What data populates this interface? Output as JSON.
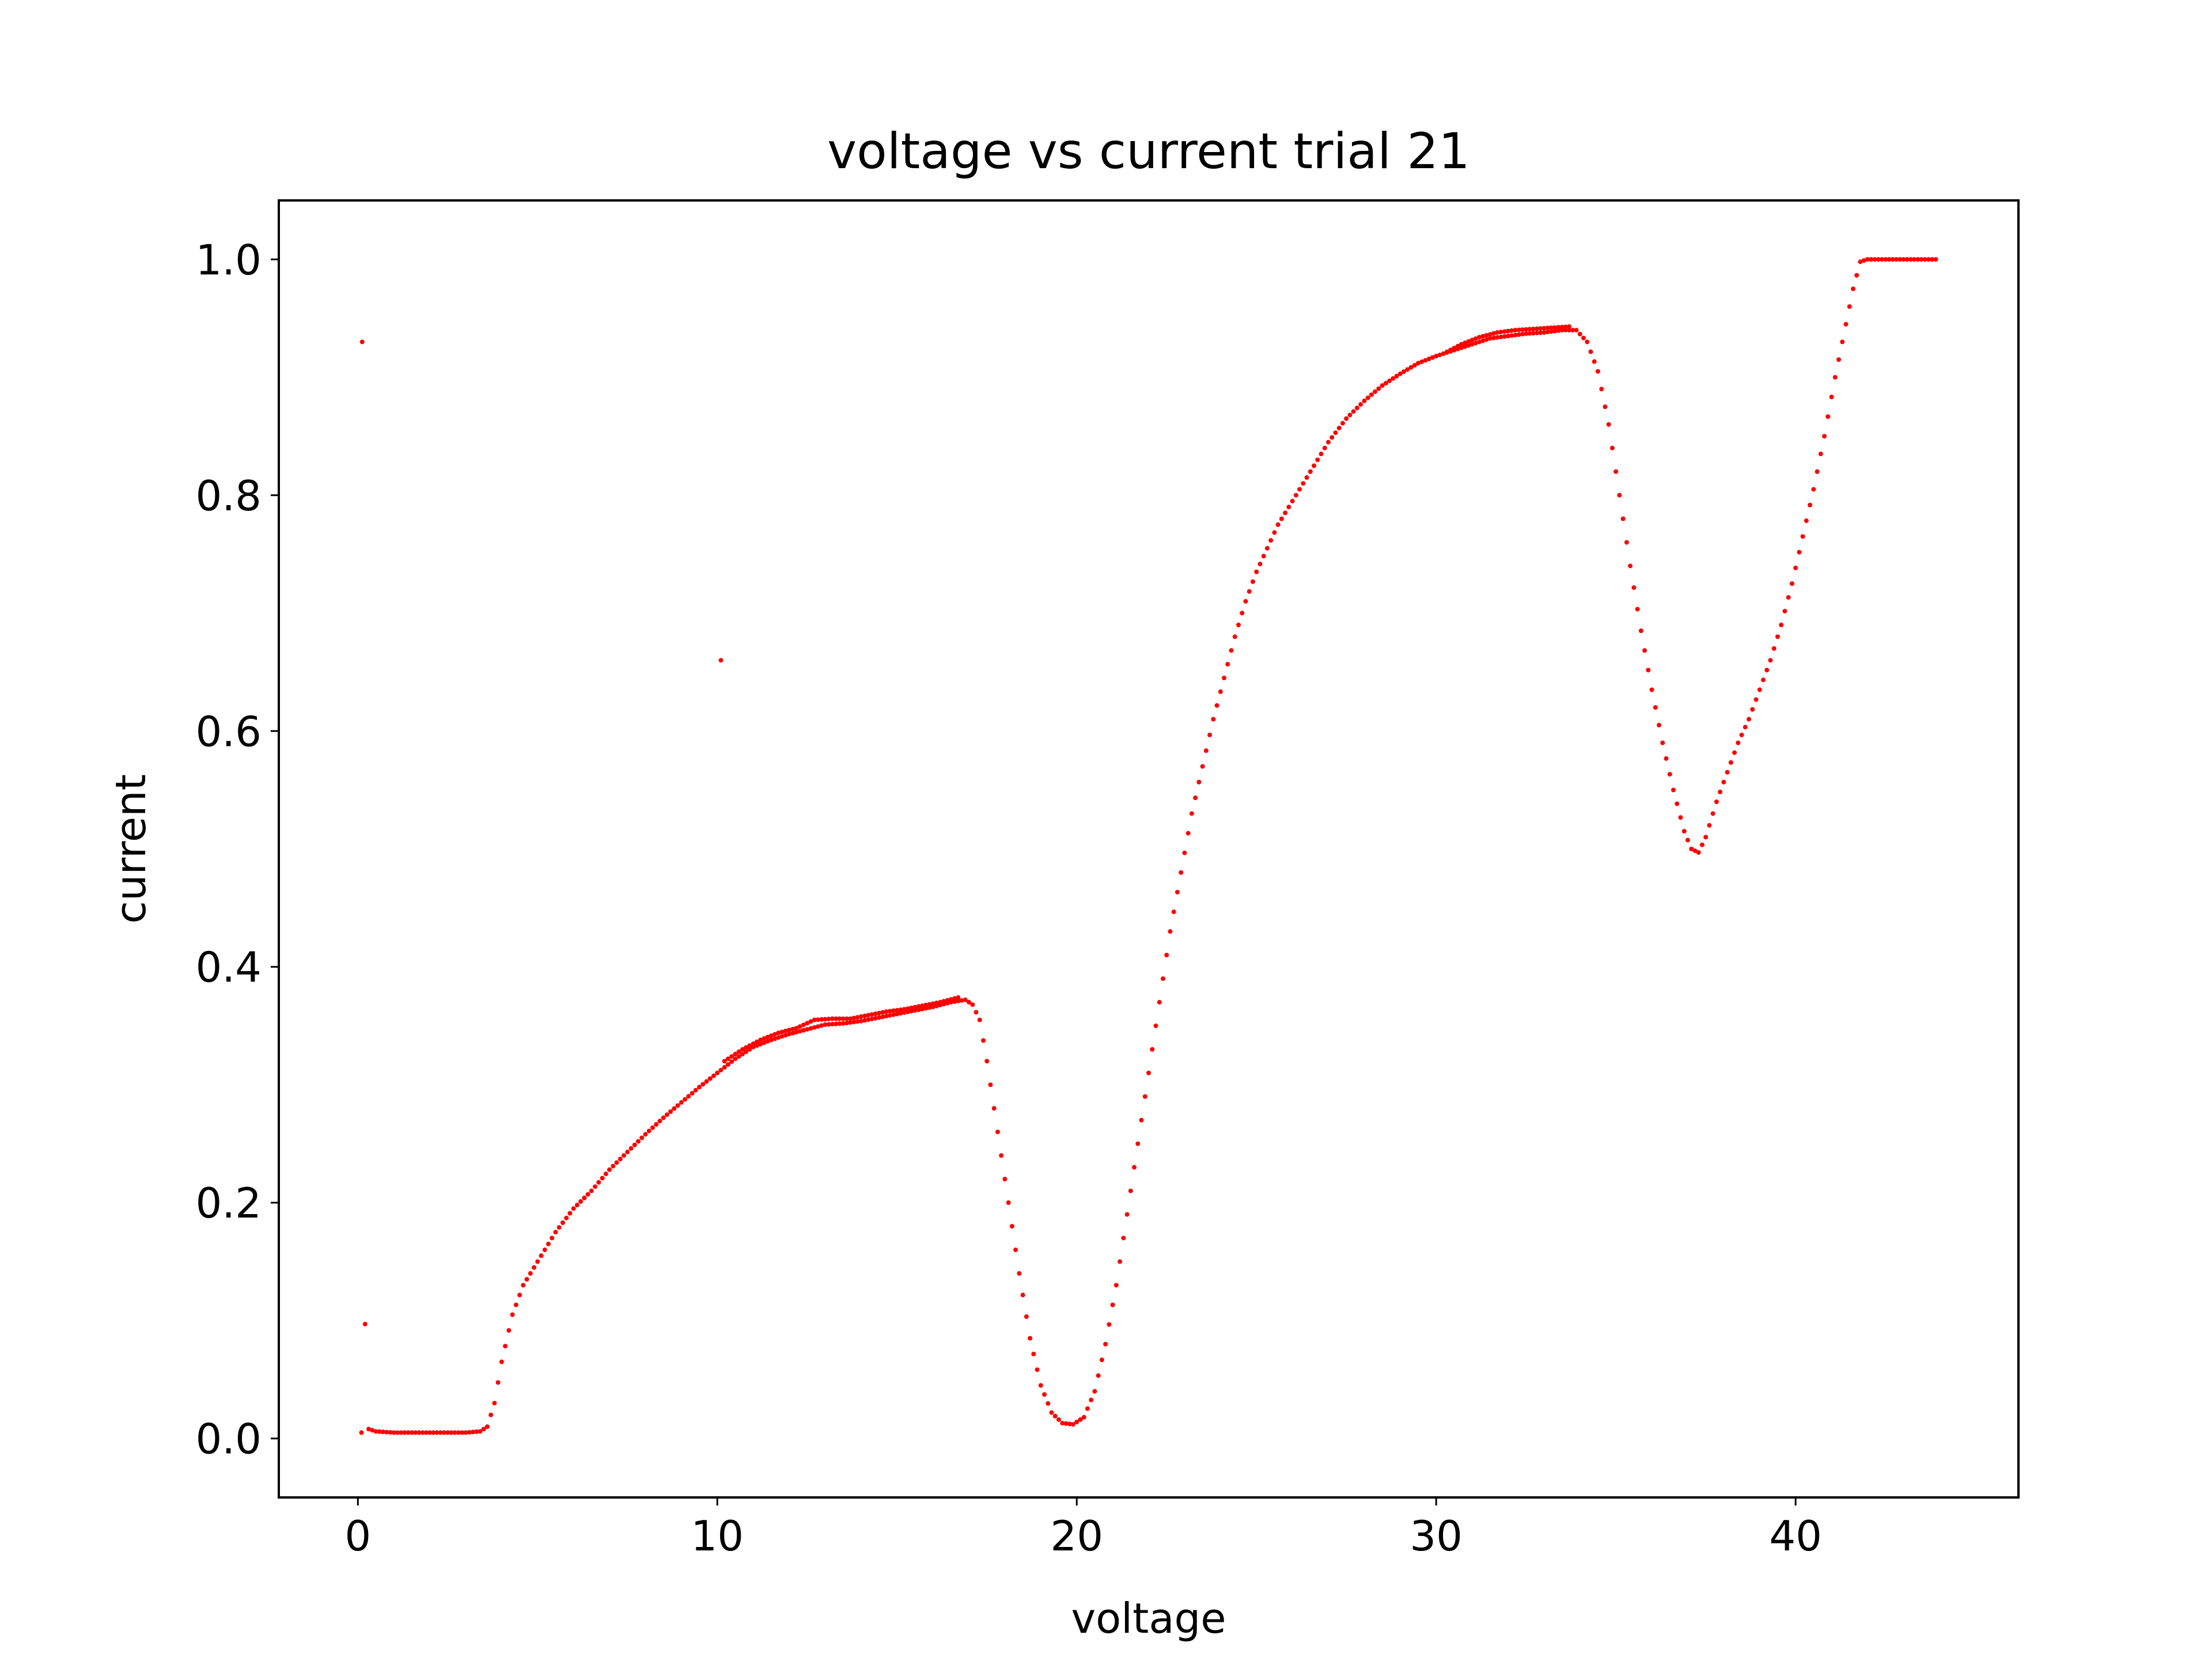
{
  "chart_data": {
    "type": "scatter",
    "title": "voltage vs current trial 21",
    "xlabel": "voltage",
    "ylabel": "current",
    "xlim": [
      -2.2,
      46.2
    ],
    "ylim": [
      -0.05,
      1.05
    ],
    "xticks": [
      0,
      10,
      20,
      30,
      40
    ],
    "xtick_labels": [
      "0",
      "10",
      "20",
      "30",
      "40"
    ],
    "yticks": [
      0.0,
      0.2,
      0.4,
      0.6,
      0.8,
      1.0
    ],
    "ytick_labels": [
      "0.0",
      "0.2",
      "0.4",
      "0.6",
      "0.8",
      "1.0"
    ],
    "grid": false,
    "legend": "none",
    "marker_color": "#ff0000",
    "series": [
      {
        "marker": "point",
        "outliers": [
          [
            0.1,
            0.005
          ],
          [
            0.12,
            0.93
          ],
          [
            0.2,
            0.097
          ],
          [
            10.1,
            0.66
          ]
        ],
        "points_main": [
          [
            0.3,
            0.008
          ],
          [
            0.5,
            0.006
          ],
          [
            1.0,
            0.005
          ],
          [
            1.5,
            0.005
          ],
          [
            2.0,
            0.005
          ],
          [
            2.5,
            0.005
          ],
          [
            3.0,
            0.005
          ],
          [
            3.4,
            0.006
          ],
          [
            3.6,
            0.01
          ],
          [
            3.8,
            0.03
          ],
          [
            4.0,
            0.065
          ],
          [
            4.3,
            0.105
          ],
          [
            4.6,
            0.13
          ],
          [
            5.0,
            0.15
          ],
          [
            5.5,
            0.175
          ],
          [
            6.0,
            0.195
          ],
          [
            6.5,
            0.21
          ],
          [
            7.0,
            0.228
          ],
          [
            7.5,
            0.243
          ],
          [
            8.0,
            0.258
          ],
          [
            8.5,
            0.272
          ],
          [
            9.0,
            0.285
          ],
          [
            9.5,
            0.298
          ],
          [
            10.0,
            0.31
          ],
          [
            10.5,
            0.322
          ],
          [
            11.0,
            0.332
          ],
          [
            11.5,
            0.338
          ],
          [
            12.0,
            0.343
          ],
          [
            12.5,
            0.347
          ],
          [
            13.0,
            0.351
          ],
          [
            13.5,
            0.352
          ],
          [
            14.0,
            0.354
          ],
          [
            14.5,
            0.357
          ],
          [
            15.0,
            0.36
          ],
          [
            15.5,
            0.363
          ],
          [
            16.0,
            0.366
          ],
          [
            16.5,
            0.37
          ],
          [
            16.9,
            0.372
          ],
          [
            17.1,
            0.368
          ],
          [
            17.3,
            0.355
          ],
          [
            17.5,
            0.32
          ],
          [
            17.8,
            0.26
          ],
          [
            18.1,
            0.2
          ],
          [
            18.4,
            0.14
          ],
          [
            18.7,
            0.085
          ],
          [
            19.0,
            0.045
          ],
          [
            19.3,
            0.022
          ],
          [
            19.6,
            0.013
          ],
          [
            19.9,
            0.012
          ],
          [
            20.2,
            0.018
          ],
          [
            20.5,
            0.04
          ],
          [
            20.8,
            0.08
          ],
          [
            21.1,
            0.13
          ],
          [
            21.4,
            0.19
          ],
          [
            21.7,
            0.25
          ],
          [
            22.0,
            0.31
          ],
          [
            22.3,
            0.37
          ],
          [
            22.6,
            0.43
          ],
          [
            22.9,
            0.48
          ],
          [
            23.2,
            0.53
          ],
          [
            23.5,
            0.57
          ],
          [
            23.8,
            0.61
          ],
          [
            24.1,
            0.645
          ],
          [
            24.4,
            0.68
          ],
          [
            24.7,
            0.71
          ],
          [
            25.0,
            0.735
          ],
          [
            25.3,
            0.755
          ],
          [
            25.6,
            0.775
          ],
          [
            26.0,
            0.795
          ],
          [
            26.5,
            0.82
          ],
          [
            27.0,
            0.845
          ],
          [
            27.5,
            0.865
          ],
          [
            28.0,
            0.88
          ],
          [
            28.5,
            0.893
          ],
          [
            29.0,
            0.903
          ],
          [
            29.5,
            0.912
          ],
          [
            30.0,
            0.918
          ],
          [
            30.5,
            0.923
          ],
          [
            31.0,
            0.928
          ],
          [
            31.5,
            0.933
          ],
          [
            32.0,
            0.935
          ],
          [
            32.5,
            0.937
          ],
          [
            33.0,
            0.938
          ],
          [
            33.5,
            0.94
          ],
          [
            33.9,
            0.94
          ],
          [
            34.2,
            0.93
          ],
          [
            34.5,
            0.905
          ],
          [
            34.8,
            0.86
          ],
          [
            35.1,
            0.8
          ],
          [
            35.4,
            0.74
          ],
          [
            35.7,
            0.685
          ],
          [
            36.0,
            0.635
          ],
          [
            36.3,
            0.59
          ],
          [
            36.6,
            0.55
          ],
          [
            36.9,
            0.515
          ],
          [
            37.1,
            0.5
          ],
          [
            37.3,
            0.497
          ],
          [
            37.5,
            0.51
          ],
          [
            37.8,
            0.54
          ],
          [
            38.1,
            0.565
          ],
          [
            38.4,
            0.59
          ],
          [
            38.7,
            0.61
          ],
          [
            39.0,
            0.635
          ],
          [
            39.3,
            0.66
          ],
          [
            39.6,
            0.69
          ],
          [
            39.9,
            0.725
          ],
          [
            40.2,
            0.765
          ],
          [
            40.5,
            0.805
          ],
          [
            40.8,
            0.85
          ],
          [
            41.1,
            0.9
          ],
          [
            41.4,
            0.945
          ],
          [
            41.6,
            0.975
          ],
          [
            41.8,
            0.998
          ],
          [
            42.0,
            1.0
          ],
          [
            42.5,
            1.0
          ],
          [
            43.0,
            1.0
          ],
          [
            43.5,
            1.0
          ],
          [
            43.9,
            1.0
          ]
        ],
        "points_upper_branch": [
          [
            10.2,
            0.32
          ],
          [
            10.7,
            0.33
          ],
          [
            11.2,
            0.338
          ],
          [
            11.7,
            0.344
          ],
          [
            12.2,
            0.348
          ],
          [
            12.7,
            0.355
          ],
          [
            13.2,
            0.356
          ],
          [
            13.7,
            0.356
          ],
          [
            14.2,
            0.359
          ],
          [
            14.7,
            0.362
          ],
          [
            15.2,
            0.364
          ],
          [
            15.7,
            0.367
          ],
          [
            16.2,
            0.37
          ],
          [
            16.7,
            0.374
          ],
          [
            30.2,
            0.92
          ],
          [
            30.7,
            0.928
          ],
          [
            31.2,
            0.934
          ],
          [
            31.7,
            0.938
          ],
          [
            32.2,
            0.94
          ],
          [
            32.7,
            0.941
          ],
          [
            33.2,
            0.942
          ],
          [
            33.7,
            0.943
          ]
        ]
      }
    ]
  }
}
